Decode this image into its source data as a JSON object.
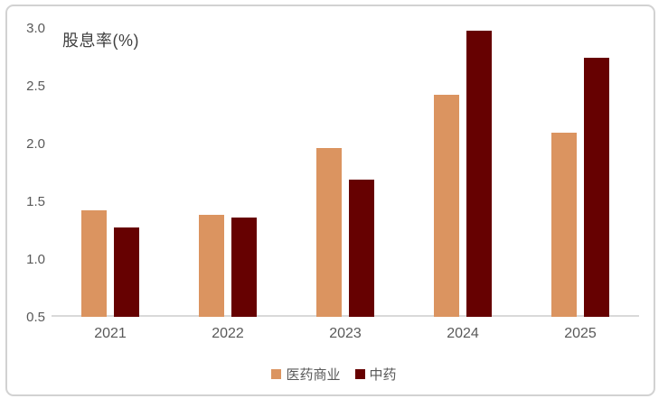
{
  "chart_data": {
    "type": "bar",
    "title": "股息率(%)",
    "categories": [
      "2021",
      "2022",
      "2023",
      "2024",
      "2025"
    ],
    "series": [
      {
        "name": "医药商业",
        "color": "#DB9460",
        "values": [
          1.42,
          1.38,
          1.96,
          2.42,
          2.09
        ]
      },
      {
        "name": "中药",
        "color": "#660101",
        "values": [
          1.27,
          1.36,
          1.69,
          2.98,
          2.74
        ]
      }
    ],
    "ylabel": "",
    "xlabel": "",
    "ylim": [
      0.5,
      3.0
    ],
    "yticks": [
      3.0,
      2.5,
      2.0,
      1.5,
      1.0,
      0.5
    ],
    "ytick_labels": [
      "3.0",
      "2.5",
      "2.0",
      "1.5",
      "1.0",
      "0.5"
    ],
    "grid": false,
    "legend_position": "bottom-center"
  },
  "colors": {
    "axis_text": "#595959",
    "title_text": "#3f3f3f",
    "axis_line": "#d9d9d9",
    "card_border": "#d2d2d2",
    "background": "#ffffff"
  }
}
